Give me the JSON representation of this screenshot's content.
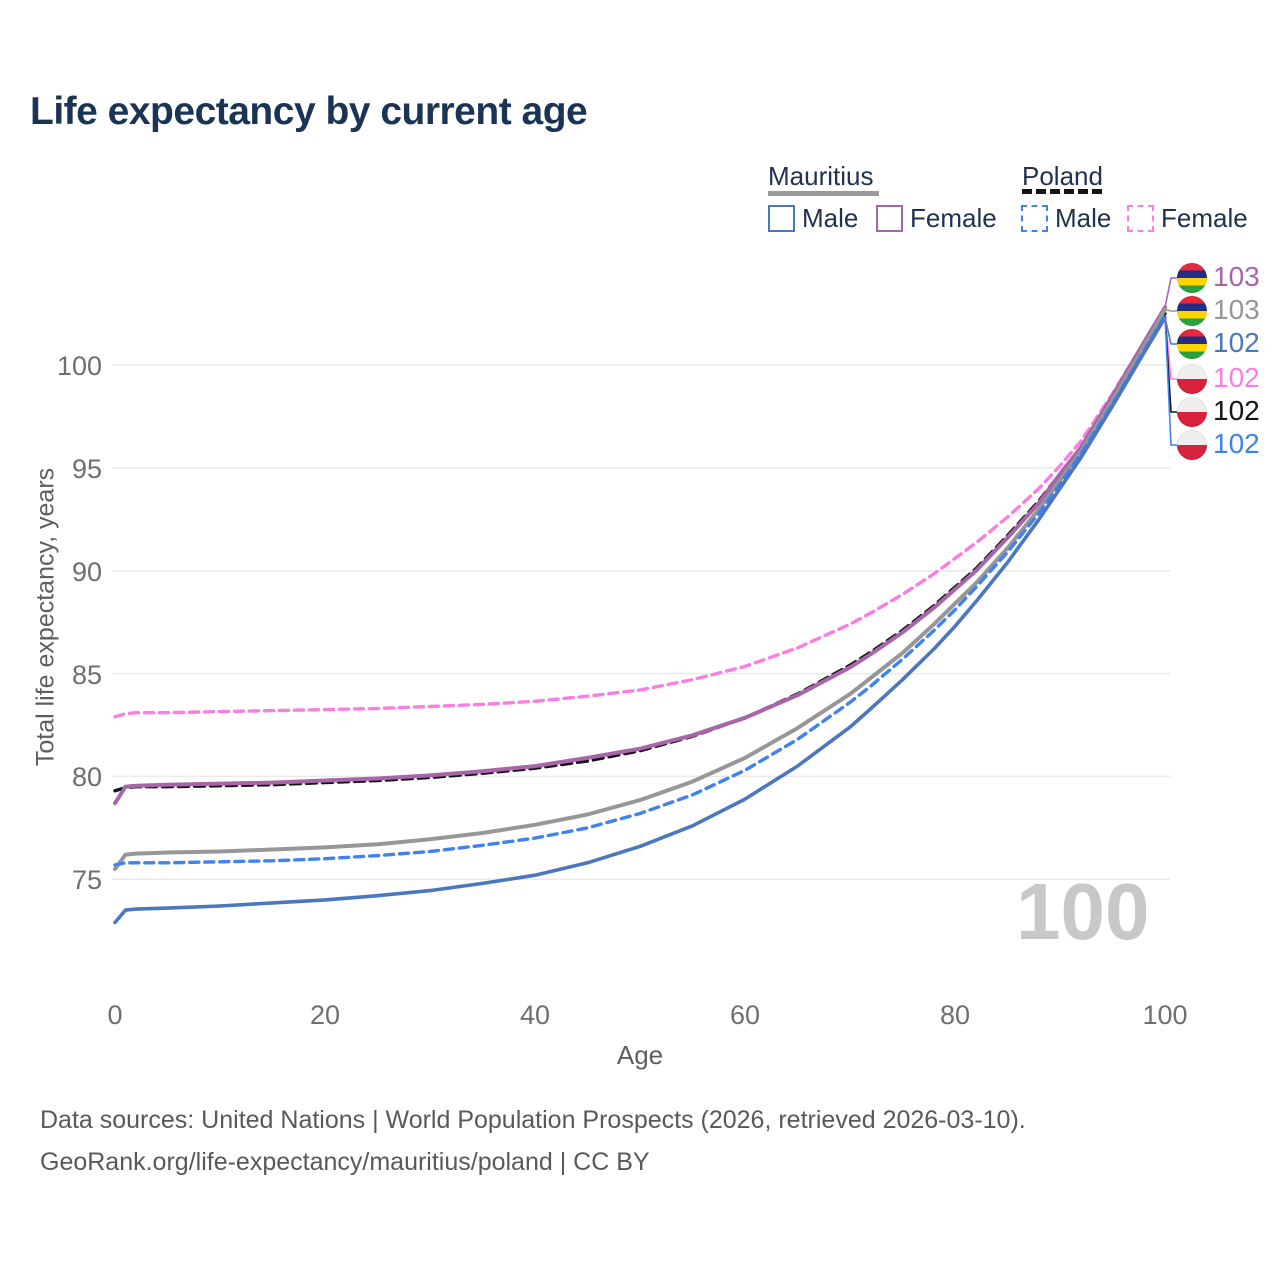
{
  "title": "Life expectancy by current age",
  "colors": {
    "mauritius_male": "#4a77bd",
    "mauritius_female": "#a965a9",
    "mauritius_all": "#979797",
    "poland_male": "#3f82f0",
    "poland_female": "#fb7de2",
    "poland_all": "#141414",
    "title_text": "#1c3454",
    "axis_text": "#6f6f6f",
    "gridline": "#eaeaea",
    "watermark": "#c8c8c8"
  },
  "legend": {
    "groups": [
      {
        "name": "Mauritius",
        "line_style": "solid",
        "items": [
          {
            "label": "Male",
            "color": "mauritius_male"
          },
          {
            "label": "Female",
            "color": "mauritius_female"
          }
        ]
      },
      {
        "name": "Poland",
        "line_style": "dashed",
        "items": [
          {
            "label": "Male",
            "color": "poland_male"
          },
          {
            "label": "Female",
            "color": "poland_female"
          }
        ]
      }
    ]
  },
  "y_axis": {
    "title": "Total life expectancy, years",
    "ticks": [
      75,
      80,
      85,
      90,
      95,
      100
    ],
    "range": [
      72,
      103.5
    ],
    "grid": true
  },
  "x_axis": {
    "title": "Age",
    "ticks": [
      0,
      20,
      40,
      60,
      80,
      100
    ],
    "range": [
      0,
      100
    ],
    "grid": false
  },
  "watermark": "100",
  "end_labels": [
    {
      "flag": "mauritius",
      "value": "103",
      "series": "mauritius_female"
    },
    {
      "flag": "mauritius",
      "value": "103",
      "series": "mauritius_all"
    },
    {
      "flag": "mauritius",
      "value": "102",
      "series": "mauritius_male"
    },
    {
      "flag": "poland",
      "value": "102",
      "series": "poland_female"
    },
    {
      "flag": "poland",
      "value": "102",
      "series": "poland_all"
    },
    {
      "flag": "poland",
      "value": "102",
      "series": "poland_male"
    }
  ],
  "footer": {
    "line1": "Data sources: United Nations | World Population Prospects (2026, retrieved 2026-03-10).",
    "line2": "GeoRank.org/life-expectancy/mauritius/poland | CC BY"
  },
  "chart_data": {
    "type": "line",
    "title": "Life expectancy by current age",
    "xlabel": "Age",
    "ylabel": "Total life expectancy, years",
    "xlim": [
      0,
      100
    ],
    "ylim": [
      72,
      103.5
    ],
    "legend_position": "top-right",
    "x": [
      0,
      1,
      2,
      5,
      10,
      15,
      20,
      25,
      30,
      35,
      40,
      45,
      50,
      55,
      60,
      65,
      70,
      72,
      75,
      78,
      80,
      82,
      85,
      88,
      90,
      92,
      95,
      98,
      100
    ],
    "series": [
      {
        "id": "poland_female",
        "name": "Poland Female",
        "style": "dashed",
        "color": "poland_female",
        "width": 3.4,
        "dash": "9 6",
        "values": [
          82.9,
          83.05,
          83.1,
          83.1,
          83.15,
          83.2,
          83.25,
          83.3,
          83.4,
          83.5,
          83.65,
          83.9,
          84.2,
          84.7,
          85.35,
          86.25,
          87.4,
          87.95,
          88.85,
          89.85,
          90.6,
          91.35,
          92.6,
          94.0,
          95.1,
          96.3,
          98.6,
          101.1,
          102.5
        ]
      },
      {
        "id": "poland_all",
        "name": "Poland Both sexes",
        "style": "dashed",
        "color": "poland_all",
        "width": 3.4,
        "dash": "10 6",
        "values": [
          79.3,
          79.45,
          79.5,
          79.5,
          79.55,
          79.6,
          79.7,
          79.8,
          79.95,
          80.15,
          80.4,
          80.75,
          81.25,
          81.95,
          82.85,
          84.0,
          85.4,
          86.05,
          87.1,
          88.3,
          89.2,
          90.1,
          91.7,
          93.4,
          94.7,
          96.0,
          98.4,
          101.0,
          102.5
        ]
      },
      {
        "id": "mauritius_female",
        "name": "Mauritius Female",
        "style": "solid",
        "color": "mauritius_female",
        "width": 4,
        "dash": null,
        "values": [
          78.7,
          79.5,
          79.55,
          79.6,
          79.65,
          79.7,
          79.8,
          79.9,
          80.05,
          80.25,
          80.5,
          80.9,
          81.35,
          82.0,
          82.85,
          83.95,
          85.3,
          85.95,
          87.0,
          88.2,
          89.1,
          90.0,
          91.6,
          93.3,
          94.7,
          96.0,
          98.5,
          101.1,
          102.8
        ]
      },
      {
        "id": "mauritius_all",
        "name": "Mauritius Both sexes",
        "style": "solid",
        "color": "mauritius_all",
        "width": 4,
        "dash": null,
        "values": [
          75.5,
          76.2,
          76.25,
          76.3,
          76.35,
          76.45,
          76.55,
          76.7,
          76.95,
          77.25,
          77.65,
          78.15,
          78.85,
          79.75,
          80.9,
          82.35,
          84.0,
          84.8,
          86.0,
          87.4,
          88.4,
          89.4,
          91.1,
          93.0,
          94.4,
          95.8,
          98.3,
          100.9,
          102.7
        ]
      },
      {
        "id": "poland_male",
        "name": "Poland Male",
        "style": "dashed",
        "color": "poland_male",
        "width": 3.4,
        "dash": "9 6",
        "values": [
          75.7,
          75.8,
          75.8,
          75.8,
          75.85,
          75.9,
          76.0,
          76.15,
          76.35,
          76.65,
          77.0,
          77.5,
          78.2,
          79.1,
          80.3,
          81.8,
          83.6,
          84.4,
          85.7,
          87.1,
          88.1,
          89.2,
          90.9,
          92.8,
          94.2,
          95.7,
          98.1,
          100.7,
          102.4
        ]
      },
      {
        "id": "mauritius_male",
        "name": "Mauritius Male",
        "style": "solid",
        "color": "mauritius_male",
        "width": 3.6,
        "dash": null,
        "values": [
          72.9,
          73.5,
          73.55,
          73.6,
          73.7,
          73.85,
          74.0,
          74.2,
          74.45,
          74.8,
          75.2,
          75.8,
          76.6,
          77.6,
          78.9,
          80.5,
          82.4,
          83.3,
          84.7,
          86.2,
          87.3,
          88.5,
          90.4,
          92.5,
          94.0,
          95.5,
          98.0,
          100.6,
          102.3
        ]
      }
    ]
  }
}
